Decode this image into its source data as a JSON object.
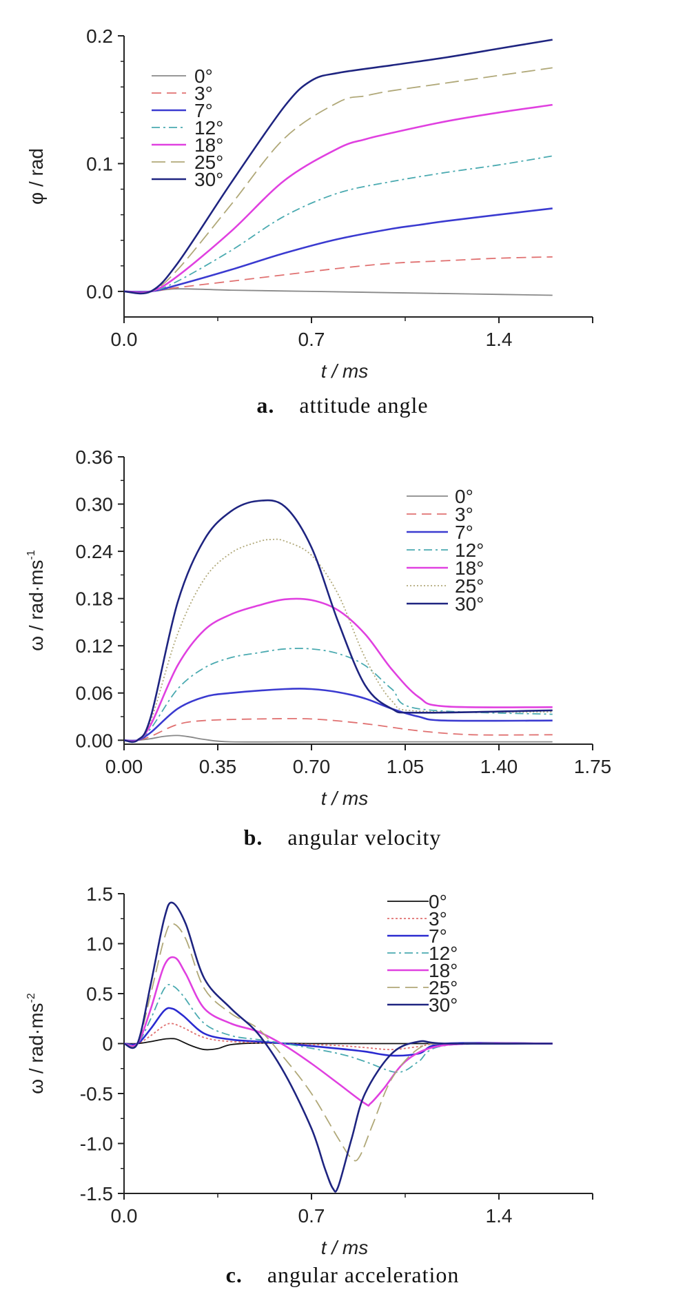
{
  "chart_data": [
    {
      "type": "line",
      "caption_letter": "a.",
      "caption_text": "attitude angle",
      "xlabel": "t / ms",
      "ylabel": "φ / rad",
      "xlim": [
        0,
        1.75
      ],
      "ylim": [
        -0.02,
        0.2
      ],
      "xticks": [
        "0.0",
        "0.7",
        "1.4"
      ],
      "xtick_values": [
        0,
        0.7,
        1.4
      ],
      "yticks": [
        "0.0",
        "0.1",
        "0.2"
      ],
      "ytick_values": [
        0,
        0.1,
        0.2
      ],
      "legend_position": "top-left",
      "series": [
        {
          "name": "0°",
          "color": "#888888",
          "dash": "",
          "x": [
            0,
            0.1,
            0.2,
            0.4,
            0.7,
            1.0,
            1.3,
            1.6
          ],
          "y": [
            0,
            0,
            0.002,
            0.001,
            0.0,
            -0.001,
            -0.002,
            -0.003
          ]
        },
        {
          "name": "3°",
          "color": "#e07070",
          "dash": "14,8",
          "x": [
            0,
            0.1,
            0.2,
            0.4,
            0.6,
            0.8,
            1.0,
            1.2,
            1.4,
            1.6
          ],
          "y": [
            0,
            0,
            0.003,
            0.008,
            0.013,
            0.018,
            0.022,
            0.024,
            0.026,
            0.027
          ]
        },
        {
          "name": "7°",
          "color": "#3a3ad0",
          "dash": "",
          "x": [
            0,
            0.1,
            0.2,
            0.4,
            0.6,
            0.8,
            1.0,
            1.1,
            1.2,
            1.4,
            1.6
          ],
          "y": [
            0,
            0,
            0.005,
            0.017,
            0.03,
            0.041,
            0.049,
            0.052,
            0.055,
            0.06,
            0.065
          ]
        },
        {
          "name": "12°",
          "color": "#4aaab0",
          "dash": "12,5,3,5",
          "x": [
            0,
            0.1,
            0.2,
            0.4,
            0.6,
            0.8,
            1.0,
            1.2,
            1.4,
            1.6
          ],
          "y": [
            0,
            0,
            0.008,
            0.032,
            0.059,
            0.077,
            0.086,
            0.093,
            0.099,
            0.106
          ]
        },
        {
          "name": "18°",
          "color": "#e040e0",
          "dash": "",
          "x": [
            0,
            0.1,
            0.2,
            0.4,
            0.6,
            0.8,
            0.9,
            1.0,
            1.2,
            1.4,
            1.6
          ],
          "y": [
            0,
            0,
            0.012,
            0.047,
            0.087,
            0.112,
            0.119,
            0.124,
            0.133,
            0.14,
            0.146
          ]
        },
        {
          "name": "25°",
          "color": "#b0a878",
          "dash": "20,8",
          "x": [
            0,
            0.1,
            0.2,
            0.4,
            0.6,
            0.8,
            0.9,
            1.0,
            1.2,
            1.4,
            1.6
          ],
          "y": [
            0,
            0,
            0.017,
            0.068,
            0.12,
            0.148,
            0.153,
            0.157,
            0.163,
            0.169,
            0.175
          ]
        },
        {
          "name": "30°",
          "color": "#1e2480",
          "dash": "",
          "x": [
            0,
            0.1,
            0.2,
            0.4,
            0.6,
            0.7,
            0.8,
            1.0,
            1.2,
            1.4,
            1.6
          ],
          "y": [
            0,
            0,
            0.022,
            0.085,
            0.145,
            0.165,
            0.171,
            0.177,
            0.183,
            0.19,
            0.197
          ]
        }
      ]
    },
    {
      "type": "line",
      "caption_letter": "b.",
      "caption_text": "angular velocity",
      "xlabel": "t / ms",
      "ylabel": "ω / rad·ms",
      "ylabel_sup": "-1",
      "xlim": [
        0,
        1.75
      ],
      "ylim": [
        -0.005,
        0.36
      ],
      "xticks": [
        "0.00",
        "0.35",
        "0.70",
        "1.05",
        "1.40",
        "1.75"
      ],
      "xtick_values": [
        0,
        0.35,
        0.7,
        1.05,
        1.4,
        1.75
      ],
      "yticks": [
        "0.00",
        "0.06",
        "0.12",
        "0.18",
        "0.24",
        "0.30",
        "0.36"
      ],
      "ytick_values": [
        0,
        0.06,
        0.12,
        0.18,
        0.24,
        0.3,
        0.36
      ],
      "legend_position": "top-right",
      "series": [
        {
          "name": "0°",
          "color": "#888888",
          "dash": "",
          "x": [
            0,
            0.05,
            0.1,
            0.15,
            0.2,
            0.25,
            0.3,
            0.4,
            0.7,
            1.0,
            1.3,
            1.6
          ],
          "y": [
            0,
            0,
            0.002,
            0.005,
            0.006,
            0.004,
            0.001,
            -0.002,
            -0.002,
            -0.002,
            -0.002,
            -0.002
          ]
        },
        {
          "name": "3°",
          "color": "#e07070",
          "dash": "14,8",
          "x": [
            0,
            0.05,
            0.1,
            0.2,
            0.3,
            0.5,
            0.7,
            0.9,
            1.1,
            1.3,
            1.6
          ],
          "y": [
            0,
            0,
            0.005,
            0.02,
            0.025,
            0.027,
            0.027,
            0.021,
            0.012,
            0.007,
            0.007
          ]
        },
        {
          "name": "7°",
          "color": "#3a3ad0",
          "dash": "",
          "x": [
            0,
            0.05,
            0.1,
            0.2,
            0.3,
            0.4,
            0.6,
            0.7,
            0.8,
            0.9,
            1.0,
            1.1,
            1.2,
            1.6
          ],
          "y": [
            0,
            0,
            0.01,
            0.04,
            0.055,
            0.06,
            0.065,
            0.065,
            0.061,
            0.053,
            0.04,
            0.03,
            0.025,
            0.025
          ]
        },
        {
          "name": "12°",
          "color": "#4aaab0",
          "dash": "12,5,3,5",
          "x": [
            0,
            0.05,
            0.1,
            0.2,
            0.3,
            0.4,
            0.5,
            0.6,
            0.7,
            0.8,
            0.9,
            1.0,
            1.1,
            1.6
          ],
          "y": [
            0,
            0,
            0.015,
            0.065,
            0.092,
            0.105,
            0.111,
            0.116,
            0.116,
            0.11,
            0.095,
            0.065,
            0.04,
            0.033
          ]
        },
        {
          "name": "18°",
          "color": "#e040e0",
          "dash": "",
          "x": [
            0,
            0.05,
            0.1,
            0.2,
            0.3,
            0.4,
            0.5,
            0.6,
            0.7,
            0.8,
            0.9,
            1.0,
            1.1,
            1.2,
            1.6
          ],
          "y": [
            0,
            0,
            0.02,
            0.095,
            0.14,
            0.16,
            0.171,
            0.179,
            0.178,
            0.165,
            0.135,
            0.09,
            0.055,
            0.043,
            0.042
          ]
        },
        {
          "name": "25°",
          "color": "#b0a878",
          "dash": "2,3",
          "x": [
            0,
            0.05,
            0.1,
            0.2,
            0.3,
            0.4,
            0.5,
            0.55,
            0.6,
            0.7,
            0.8,
            0.9,
            1.0,
            1.1,
            1.6
          ],
          "y": [
            0,
            0,
            0.025,
            0.135,
            0.205,
            0.238,
            0.252,
            0.255,
            0.253,
            0.235,
            0.185,
            0.105,
            0.05,
            0.037,
            0.036
          ]
        },
        {
          "name": "30°",
          "color": "#1e2480",
          "dash": "",
          "x": [
            0,
            0.05,
            0.1,
            0.2,
            0.3,
            0.4,
            0.5,
            0.6,
            0.7,
            0.8,
            0.9,
            1.0,
            1.1,
            1.6
          ],
          "y": [
            0,
            0,
            0.03,
            0.175,
            0.255,
            0.291,
            0.304,
            0.297,
            0.245,
            0.15,
            0.07,
            0.04,
            0.035,
            0.038
          ]
        }
      ]
    },
    {
      "type": "line",
      "caption_letter": "c.",
      "caption_text": "angular acceleration",
      "xlabel": "t / ms",
      "ylabel": "ω / rad·ms",
      "ylabel_sup": "-2",
      "xlim": [
        0,
        1.75
      ],
      "ylim": [
        -1.5,
        1.5
      ],
      "xticks": [
        "0.0",
        "0.7",
        "1.4"
      ],
      "xtick_values": [
        0,
        0.7,
        1.4
      ],
      "yticks": [
        "-1.5",
        "-1.0",
        "-0.5",
        "0",
        "0.5",
        "1.0",
        "1.5"
      ],
      "ytick_values": [
        -1.5,
        -1.0,
        -0.5,
        0,
        0.5,
        1.0,
        1.5
      ],
      "legend_position": "top-right",
      "series": [
        {
          "name": "0°",
          "color": "#111111",
          "dash": "",
          "x": [
            0,
            0.05,
            0.1,
            0.15,
            0.18,
            0.2,
            0.25,
            0.3,
            0.35,
            0.4,
            0.5,
            0.7,
            1.0,
            1.6
          ],
          "y": [
            0,
            0,
            0.02,
            0.045,
            0.05,
            0.04,
            -0.02,
            -0.06,
            -0.05,
            -0.01,
            0.005,
            0,
            0,
            0
          ]
        },
        {
          "name": "3°",
          "color": "#e07070",
          "dash": "3,3",
          "x": [
            0,
            0.05,
            0.1,
            0.15,
            0.18,
            0.22,
            0.3,
            0.4,
            0.6,
            0.8,
            0.9,
            1.0,
            1.1,
            1.2,
            1.6
          ],
          "y": [
            0,
            0,
            0.08,
            0.18,
            0.2,
            0.16,
            0.06,
            0.02,
            0.0,
            -0.02,
            -0.04,
            -0.06,
            -0.03,
            0,
            0
          ]
        },
        {
          "name": "7°",
          "color": "#2a2ad0",
          "dash": "",
          "x": [
            0,
            0.05,
            0.1,
            0.15,
            0.18,
            0.22,
            0.3,
            0.4,
            0.5,
            0.6,
            0.8,
            0.9,
            1.0,
            1.1,
            1.2,
            1.6
          ],
          "y": [
            0,
            0,
            0.15,
            0.33,
            0.35,
            0.28,
            0.1,
            0.04,
            0.02,
            0.0,
            -0.05,
            -0.08,
            -0.12,
            -0.1,
            0,
            0
          ]
        },
        {
          "name": "12°",
          "color": "#4aaab0",
          "dash": "12,5,3,5",
          "x": [
            0,
            0.05,
            0.1,
            0.15,
            0.18,
            0.22,
            0.3,
            0.4,
            0.5,
            0.6,
            0.8,
            0.9,
            1.0,
            1.05,
            1.1,
            1.2,
            1.6
          ],
          "y": [
            0,
            0,
            0.25,
            0.55,
            0.58,
            0.48,
            0.2,
            0.08,
            0.04,
            0.0,
            -0.1,
            -0.18,
            -0.28,
            -0.27,
            -0.18,
            -0.02,
            0
          ]
        },
        {
          "name": "18°",
          "color": "#e040e0",
          "dash": "",
          "x": [
            0,
            0.05,
            0.1,
            0.15,
            0.19,
            0.23,
            0.3,
            0.4,
            0.5,
            0.6,
            0.7,
            0.8,
            0.9,
            0.92,
            0.97,
            1.05,
            1.15,
            1.3,
            1.6
          ],
          "y": [
            0,
            0,
            0.35,
            0.78,
            0.86,
            0.7,
            0.35,
            0.2,
            0.12,
            -0.02,
            -0.2,
            -0.4,
            -0.6,
            -0.6,
            -0.45,
            -0.18,
            -0.04,
            0,
            0
          ]
        },
        {
          "name": "25°",
          "color": "#b0a878",
          "dash": "18,8",
          "x": [
            0,
            0.05,
            0.1,
            0.15,
            0.18,
            0.23,
            0.3,
            0.4,
            0.5,
            0.6,
            0.7,
            0.8,
            0.85,
            0.88,
            0.93,
            1.0,
            1.1,
            1.2,
            1.6
          ],
          "y": [
            0,
            0,
            0.5,
            1.05,
            1.2,
            1.05,
            0.55,
            0.3,
            0.15,
            -0.15,
            -0.5,
            -0.95,
            -1.15,
            -1.13,
            -0.8,
            -0.35,
            -0.05,
            0,
            0
          ]
        },
        {
          "name": "30°",
          "color": "#1e2480",
          "dash": "",
          "x": [
            0,
            0.05,
            0.1,
            0.15,
            0.18,
            0.23,
            0.3,
            0.4,
            0.5,
            0.6,
            0.7,
            0.75,
            0.78,
            0.8,
            0.85,
            0.9,
            1.0,
            1.1,
            1.2,
            1.6
          ],
          "y": [
            0,
            0,
            0.6,
            1.25,
            1.41,
            1.2,
            0.65,
            0.35,
            0.1,
            -0.3,
            -0.85,
            -1.25,
            -1.45,
            -1.43,
            -0.95,
            -0.5,
            -0.1,
            0.02,
            0,
            0
          ]
        }
      ]
    }
  ]
}
